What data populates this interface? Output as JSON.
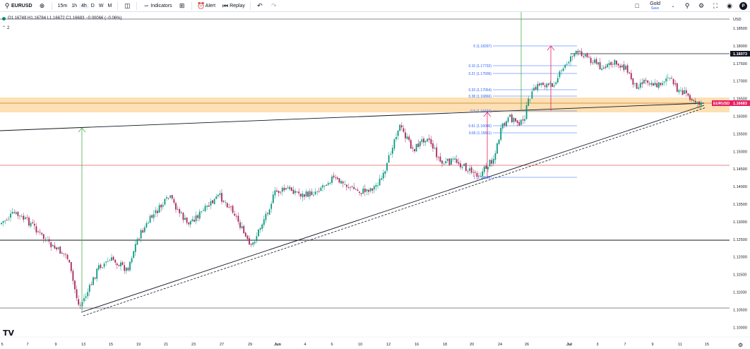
{
  "toolbar": {
    "symbol": "EURUSD",
    "intervals": [
      "15m",
      "1h",
      "4h",
      "D",
      "W",
      "M"
    ],
    "active_interval": "4h",
    "indicators_label": "Indicators",
    "alert_label": "Alert",
    "replay_label": "Replay",
    "layout_name": "Gold",
    "save_label": "Save",
    "avatar_letter": "P"
  },
  "legend": {
    "ohlc": "O1.16749 H1.16784 L1.16672 C1.16683 −0.00066 (−0.06%)",
    "collapsed_count": "2"
  },
  "price_axis": {
    "currency": "USD",
    "ticks": [
      "1.18500",
      "1.18000",
      "1.17500",
      "1.17000",
      "1.16500",
      "1.16000",
      "1.15500",
      "1.15000",
      "1.14500",
      "1.14000",
      "1.13500",
      "1.13000",
      "1.12500",
      "1.12000",
      "1.11500",
      "1.11000",
      "1.10500",
      "1.10000"
    ],
    "high_marker": "1.18073",
    "current_symbol": "EURUSD",
    "current_price": "1.16683"
  },
  "time_axis": {
    "ticks": [
      "5",
      "7",
      "9",
      "13",
      "15",
      "19",
      "21",
      "23",
      "27",
      "29",
      "Jun",
      "4",
      "6",
      "10",
      "12",
      "16",
      "18",
      "20",
      "24",
      "26",
      "Jul",
      "3",
      "7",
      "9",
      "11",
      "15"
    ]
  },
  "fib_levels": [
    "0 (1.18297)",
    "0.15 (1.17732)",
    "0.21 (1.17506)",
    "0.33 (1.17054)",
    "0.38 (1.16866)",
    "0.5 (1.16424)",
    "0.61 (1.16000)",
    "0.66 (1.15811)",
    "1 (1.14536)"
  ],
  "colors": {
    "up": "#089981",
    "down": "#a8265a",
    "zone": "#fcd59a",
    "fib": "#2962ff",
    "arrow_up_green": "#4caf50",
    "arrow_pink": "#e91e63",
    "red_line": "#e05a5a",
    "price_tag": "#e91e63"
  },
  "watermark": "TV"
}
